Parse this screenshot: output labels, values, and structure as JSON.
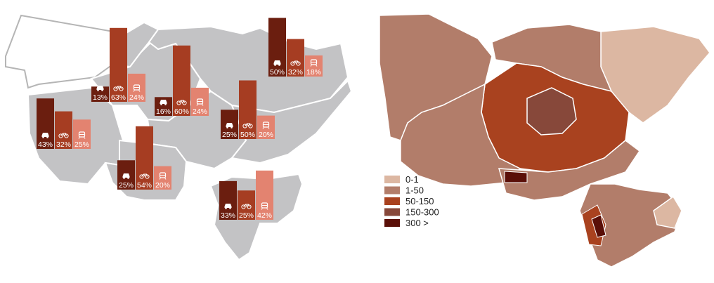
{
  "colors": {
    "car": "#6b1e0f",
    "bike": "#a63d22",
    "train": "#e38370",
    "region_fill": "#c3c3c5",
    "region_outline": "#ffffff"
  },
  "icons": {
    "car": "car-icon",
    "bike": "bicycle-icon",
    "train": "train-icon"
  },
  "districts": [
    {
      "car": "43%",
      "bike": "32%",
      "train": "25%",
      "car_v": 43,
      "bike_v": 32,
      "train_v": 25
    },
    {
      "car": "13%",
      "bike": "63%",
      "train": "24%",
      "car_v": 13,
      "bike_v": 63,
      "train_v": 24
    },
    {
      "car": "16%",
      "bike": "60%",
      "train": "24%",
      "car_v": 16,
      "bike_v": 60,
      "train_v": 24
    },
    {
      "car": "50%",
      "bike": "32%",
      "train": "18%",
      "car_v": 50,
      "bike_v": 32,
      "train_v": 18
    },
    {
      "car": "25%",
      "bike": "50%",
      "train": "20%",
      "car_v": 25,
      "bike_v": 50,
      "train_v": 20
    },
    {
      "car": "25%",
      "bike": "54%",
      "train": "20%",
      "car_v": 25,
      "bike_v": 54,
      "train_v": 20
    },
    {
      "car": "33%",
      "bike": "25%",
      "train": "42%",
      "car_v": 33,
      "bike_v": 25,
      "train_v": 42
    }
  ],
  "legend": [
    {
      "label": "0-1",
      "color": "#dcb7a2"
    },
    {
      "label": "1-50",
      "color": "#b27d6a"
    },
    {
      "label": "50-150",
      "color": "#a9421f"
    },
    {
      "label": "150-300",
      "color": "#87483a"
    },
    {
      "label": "300 >",
      "color": "#5a0f08"
    }
  ]
}
